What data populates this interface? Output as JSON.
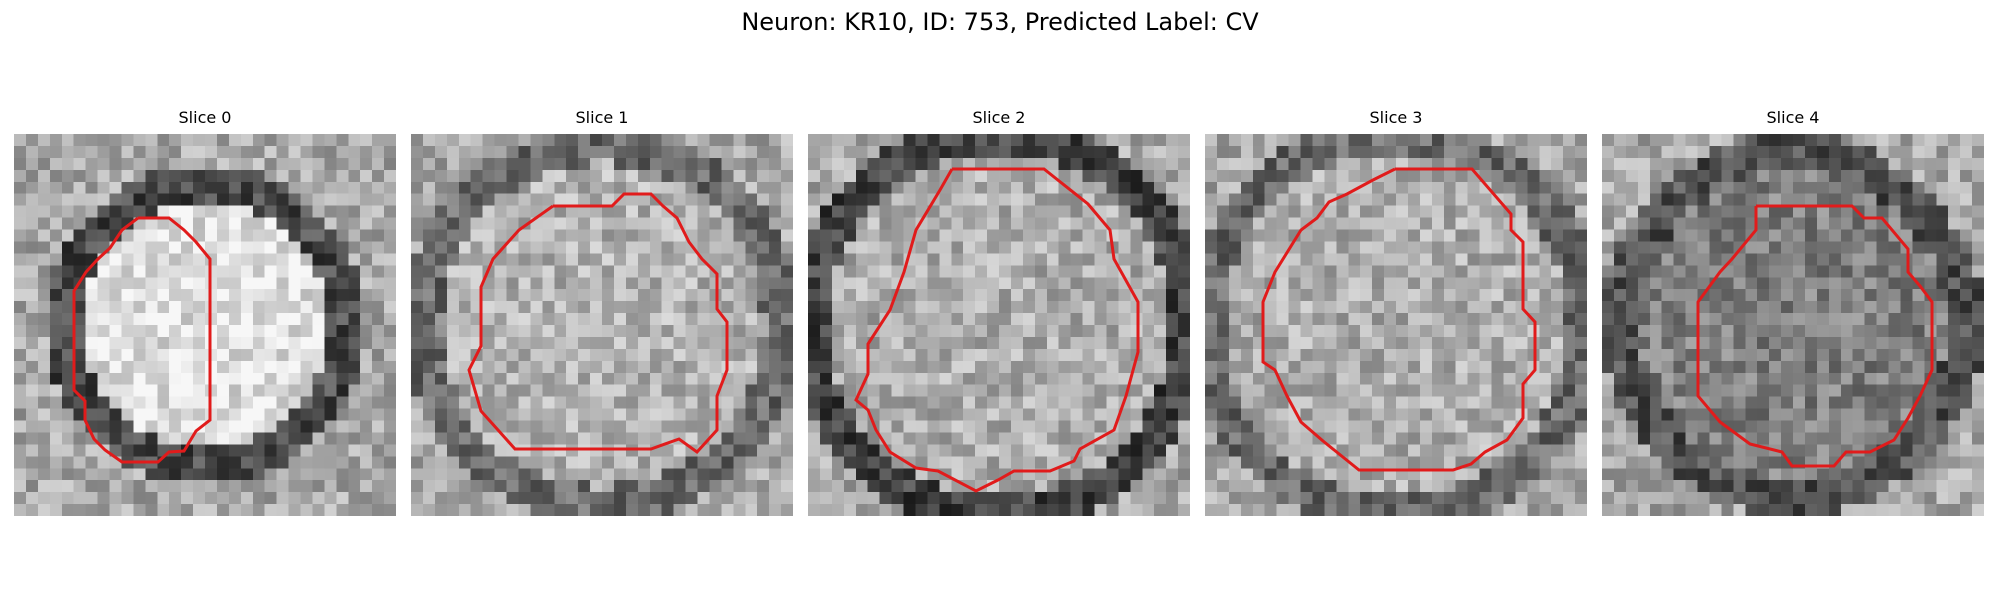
{
  "figure": {
    "title": "Neuron: KR10, ID: 753, Predicted Label: CV"
  },
  "panels": [
    {
      "title": "Slice 0",
      "ring_color": "dark",
      "ring_strength": 0.55,
      "inner_brightness": 0.88,
      "contour_radius": 0.37
    },
    {
      "title": "Slice 1",
      "ring_color": "dark",
      "ring_strength": 0.35,
      "inner_brightness": 0.7,
      "contour_radius": 0.47
    },
    {
      "title": "Slice 2",
      "ring_color": "dark",
      "ring_strength": 0.6,
      "inner_brightness": 0.68,
      "contour_radius": 0.5
    },
    {
      "title": "Slice 3",
      "ring_color": "dark",
      "ring_strength": 0.35,
      "inner_brightness": 0.68,
      "contour_radius": 0.5
    },
    {
      "title": "Slice 4",
      "ring_color": "dark",
      "ring_strength": 0.5,
      "inner_brightness": 0.5,
      "contour_radius": 0.45
    }
  ],
  "style": {
    "contour_color": "#e11b1b",
    "colormap": "grayscale"
  }
}
